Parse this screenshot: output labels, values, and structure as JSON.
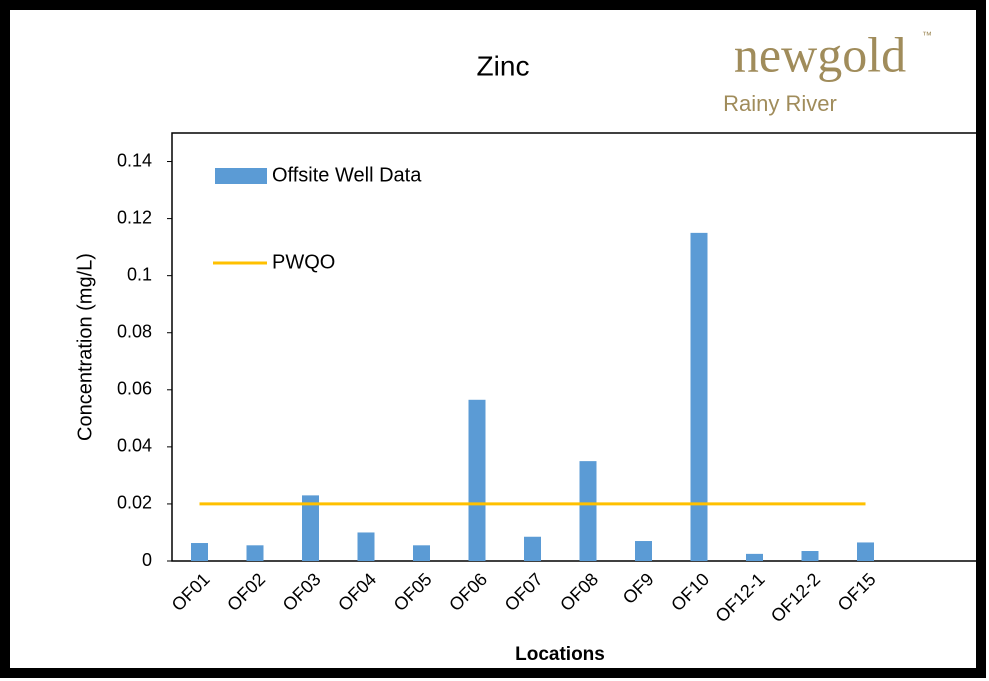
{
  "chart_data": {
    "type": "bar",
    "title": "Zinc",
    "logo": {
      "name": "newgold",
      "mark": "™",
      "subtitle": "Rainy River"
    },
    "categories": [
      "OF01",
      "OF02",
      "OF03",
      "OF04",
      "OF05",
      "OF06",
      "OF07",
      "OF08",
      "OF9",
      "OF10",
      "OF12-1",
      "OF12-2",
      "OF15"
    ],
    "series": [
      {
        "name": "Offsite Well Data",
        "type": "bar",
        "color": "#5b9bd5",
        "values": [
          0.0063,
          0.0055,
          0.023,
          0.01,
          0.0055,
          0.0565,
          0.0085,
          0.035,
          0.007,
          0.115,
          0.0025,
          0.0035,
          0.0065
        ]
      },
      {
        "name": "PWQO",
        "type": "line",
        "color": "#ffc000",
        "values": [
          0.02,
          0.02,
          0.02,
          0.02,
          0.02,
          0.02,
          0.02,
          0.02,
          0.02,
          0.02,
          0.02,
          0.02,
          0.02
        ]
      }
    ],
    "x_label": "Locations",
    "y_label": "Concentration (mg/L)",
    "ylim": [
      0,
      0.15
    ],
    "yticks": [
      0,
      0.02,
      0.04,
      0.06,
      0.08,
      0.1,
      0.12,
      0.14
    ],
    "grid": false
  }
}
